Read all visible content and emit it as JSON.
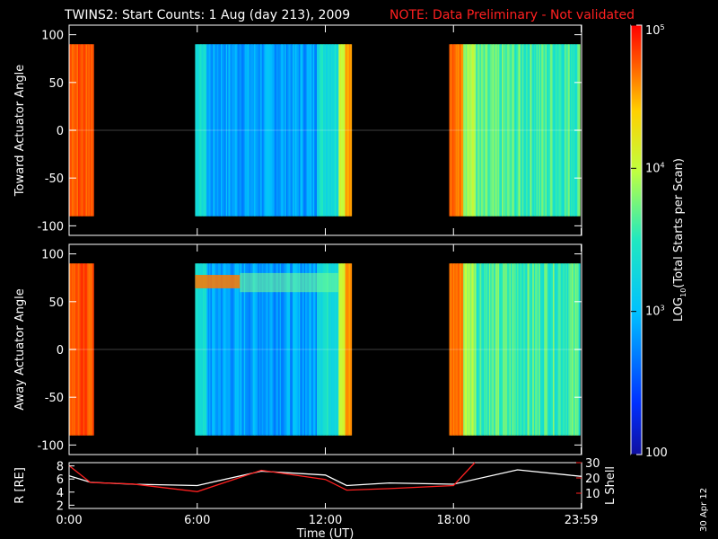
{
  "header": {
    "title": "TWINS2: Start Counts:  1 Aug (day 213), 2009",
    "note": "NOTE: Data Preliminary - Not validated"
  },
  "footer": {
    "date_stamp": "30 Apr 12"
  },
  "colors": {
    "background": "#000000",
    "axes": "#ffffff",
    "note": "#ff2020",
    "lshell": "#ff2020",
    "r_line": "#ffffff"
  },
  "chart_data": [
    {
      "type": "heatmap",
      "ylabel": "Toward Actuator Angle",
      "xlim": [
        0,
        24
      ],
      "ylim": [
        -110,
        110
      ],
      "yticks": [
        100,
        50,
        0,
        -50,
        -100
      ],
      "ytick_labels": [
        "100",
        "50",
        "0",
        "-50",
        "-100"
      ],
      "xticks": [
        0,
        6,
        12,
        18,
        23.98
      ],
      "data_segments_hours": [
        [
          0.0,
          1.1
        ],
        [
          5.9,
          13.2
        ],
        [
          17.8,
          23.9
        ]
      ],
      "angle_range": [
        -90,
        90
      ],
      "colorbar": {
        "label": "LOG10(Total Starts per Scan)",
        "scale": "log",
        "range": [
          100,
          100000
        ],
        "ticks": [
          "100",
          "10^3",
          "10^4",
          "10^5"
        ]
      }
    },
    {
      "type": "heatmap",
      "ylabel": "Away Actuator Angle",
      "xlim": [
        0,
        24
      ],
      "ylim": [
        -110,
        110
      ],
      "yticks": [
        100,
        50,
        0,
        -50,
        -100
      ],
      "ytick_labels": [
        "100",
        "50",
        "0",
        "-50",
        "-100"
      ],
      "xticks": [
        0,
        6,
        12,
        18,
        23.98
      ],
      "data_segments_hours": [
        [
          0.0,
          1.1
        ],
        [
          5.9,
          13.2
        ],
        [
          17.8,
          23.9
        ]
      ],
      "angle_range": [
        -90,
        90
      ]
    },
    {
      "type": "line",
      "xlabel": "Time (UT)",
      "xticks": [
        0,
        6,
        12,
        18,
        23.98
      ],
      "xtick_labels": [
        "0:00",
        "6:00",
        "12:00",
        "18:00",
        "23:59"
      ],
      "left_axis": {
        "label": "R [RE]",
        "ylim": [
          1.5,
          8.5
        ],
        "ticks": [
          "2",
          "4",
          "6",
          "8"
        ]
      },
      "right_axis": {
        "label": "L Shell",
        "ylim": [
          0,
          30
        ],
        "ticks": [
          "10",
          "20",
          "30"
        ]
      },
      "series": [
        {
          "axis": "left",
          "x": [
            0,
            1,
            3,
            6,
            9,
            12,
            13,
            15,
            18,
            21,
            24
          ],
          "values": [
            6.5,
            5.5,
            5.2,
            5.0,
            7.2,
            6.6,
            5.0,
            5.4,
            5.2,
            7.4,
            6.4
          ]
        },
        {
          "axis": "right",
          "x": [
            0,
            1,
            3,
            6,
            9,
            12,
            13,
            15,
            18,
            19
          ],
          "values": [
            28,
            17,
            16,
            11,
            25,
            19,
            12,
            13,
            15,
            30
          ]
        }
      ]
    }
  ]
}
